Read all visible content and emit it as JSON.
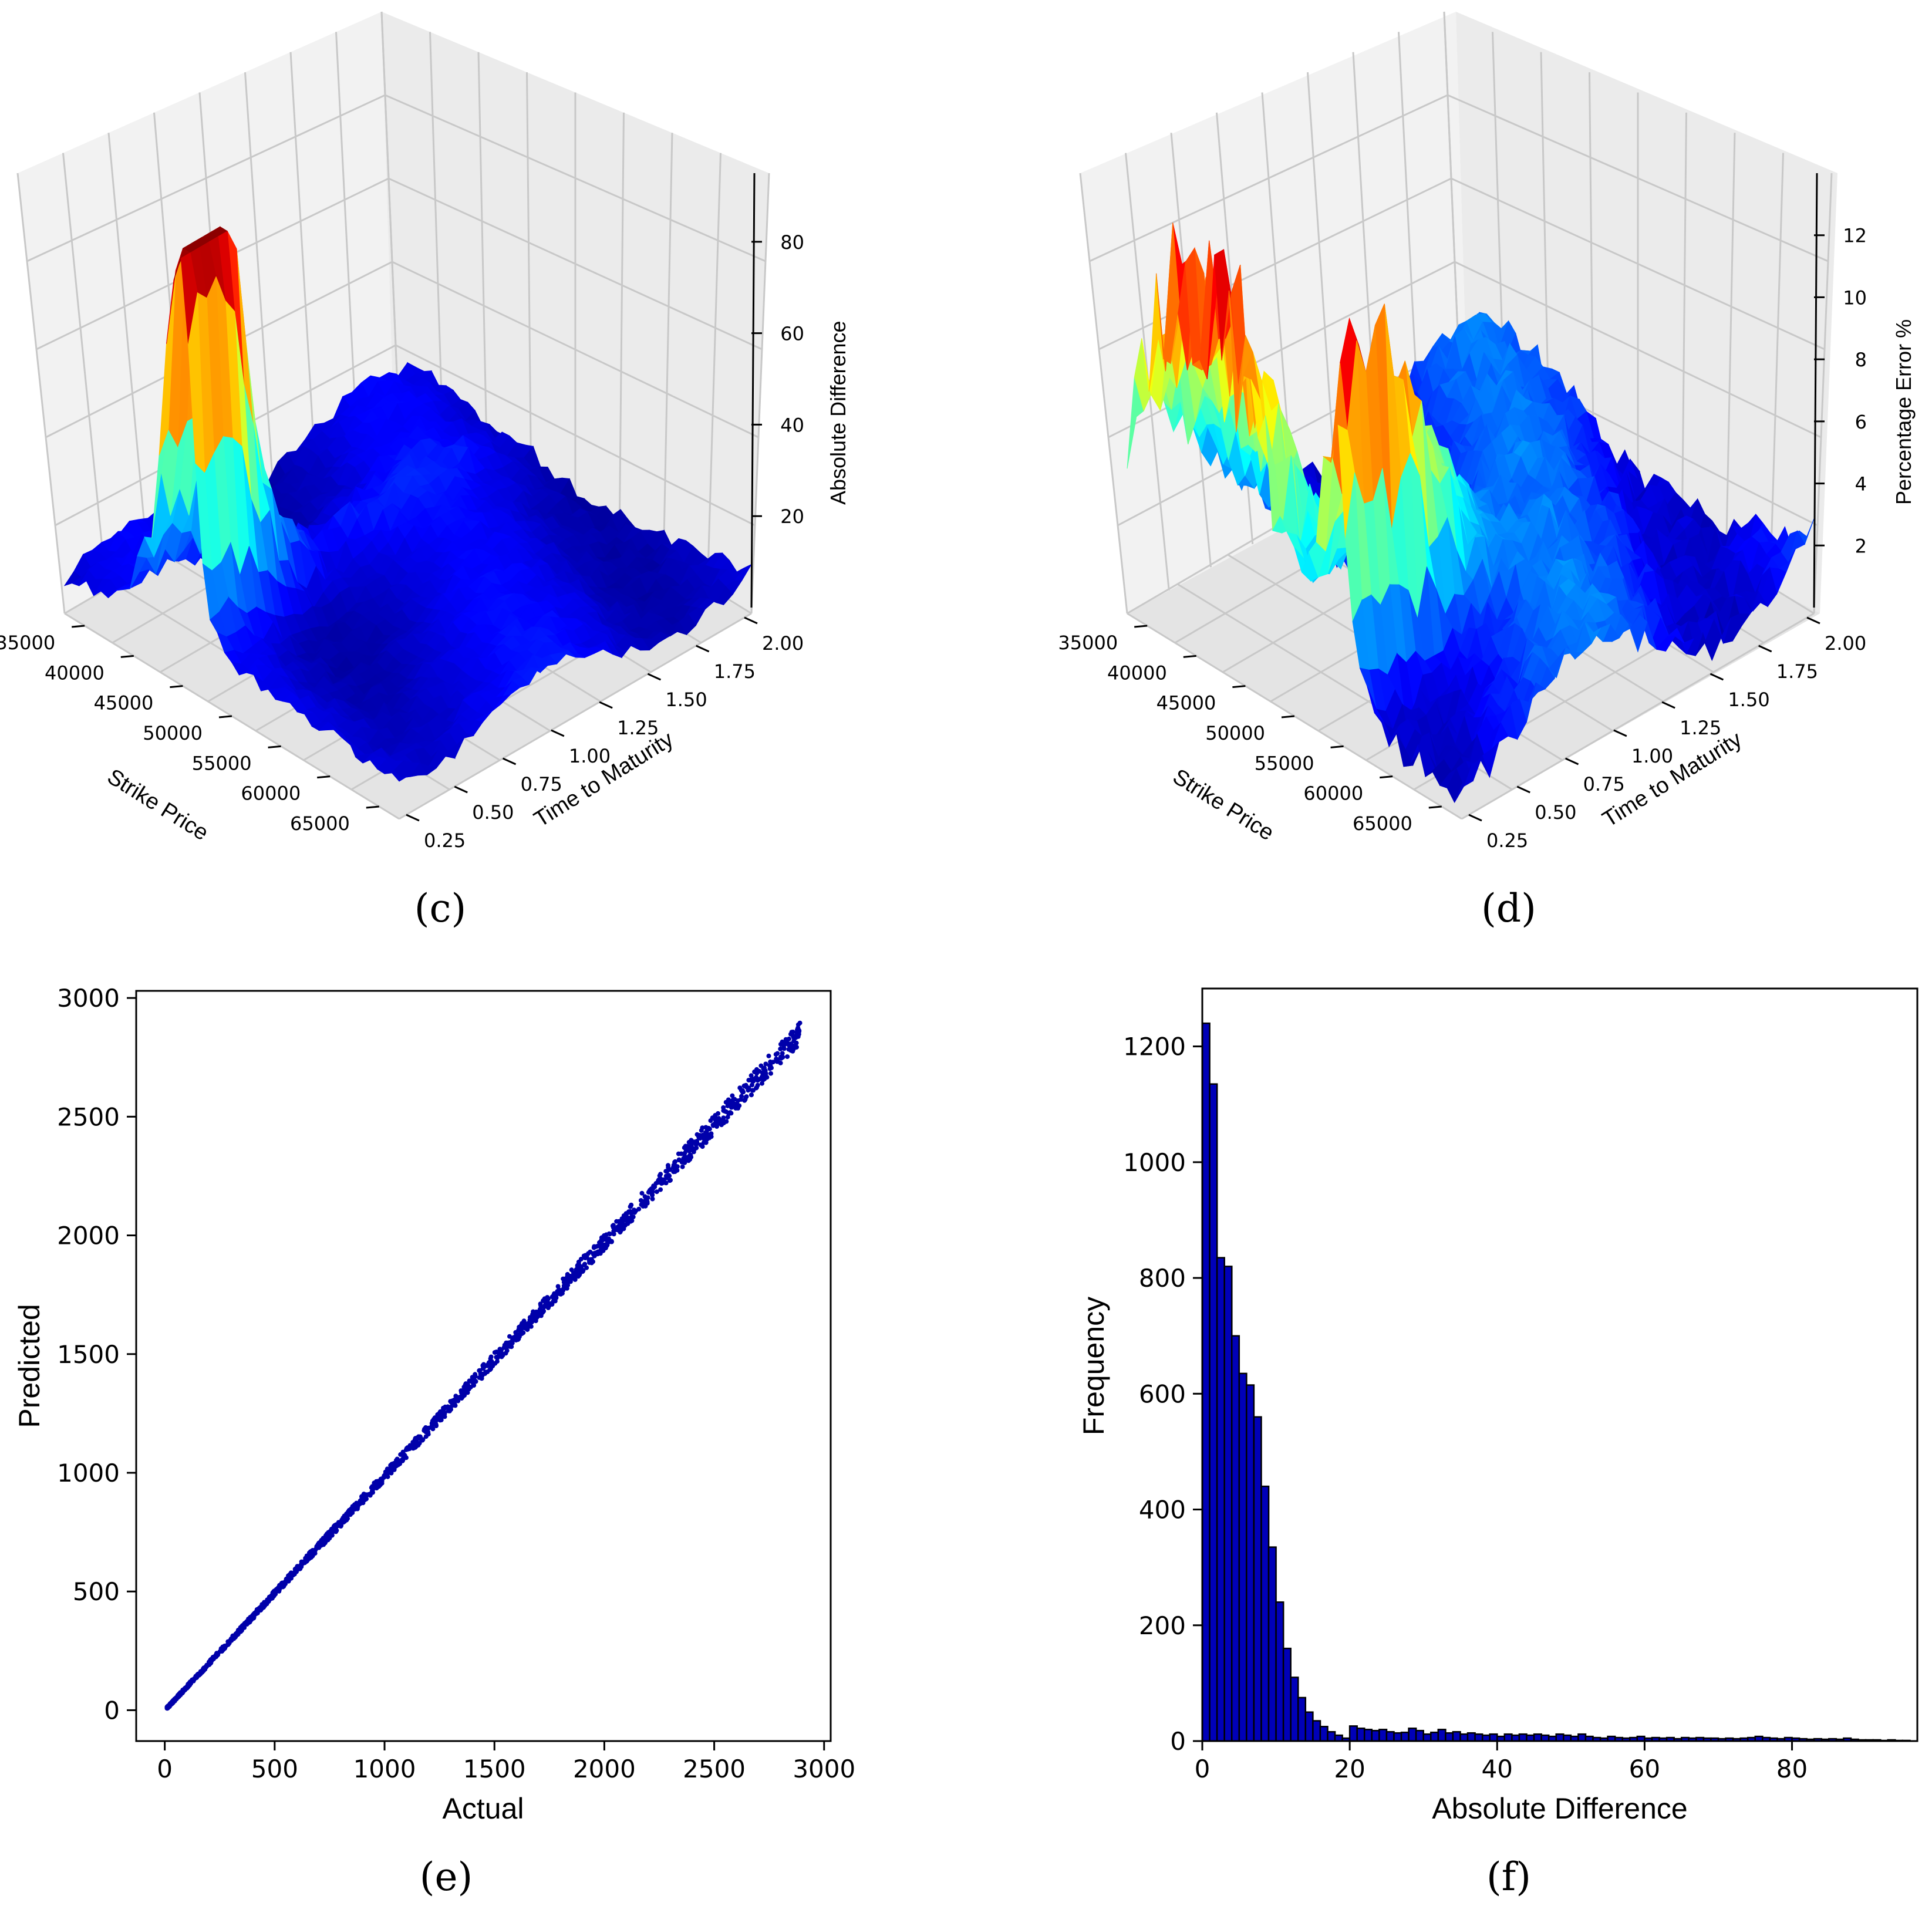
{
  "figure": {
    "panel_c_caption": "(c)",
    "panel_d_caption": "(d)",
    "panel_e_caption": "(e)",
    "panel_f_caption": "(f)"
  },
  "colors": {
    "series": "#0000aa",
    "hist_fill": "#0000b8",
    "edge": "#000000"
  },
  "chart_data": [
    {
      "id": "c",
      "type": "surface3d",
      "title": "",
      "xlabel": "Strike Price",
      "ylabel": "Time to Maturity",
      "zlabel": "Absolute Difference",
      "x_ticks": [
        "35000",
        "40000",
        "45000",
        "50000",
        "55000",
        "60000",
        "65000"
      ],
      "y_ticks": [
        "0.25",
        "0.50",
        "0.75",
        "1.00",
        "1.25",
        "1.50",
        "1.75",
        "2.00"
      ],
      "z_ticks": [
        "20",
        "40",
        "60",
        "80"
      ],
      "zlim": [
        0,
        95
      ],
      "colormap": "jet",
      "notes": "Peak about 90 near strike 45000-50000 at short maturity"
    },
    {
      "id": "d",
      "type": "surface3d",
      "title": "",
      "xlabel": "Strike Price",
      "ylabel": "Time to Maturity",
      "zlabel": "Percentage Error %",
      "x_ticks": [
        "35000",
        "40000",
        "45000",
        "50000",
        "55000",
        "60000",
        "65000"
      ],
      "y_ticks": [
        "0.25",
        "0.50",
        "0.75",
        "1.00",
        "1.25",
        "1.50",
        "1.75",
        "2.00"
      ],
      "z_ticks": [
        "2",
        "4",
        "6",
        "8",
        "10",
        "12"
      ],
      "zlim": [
        0,
        14
      ],
      "colormap": "jet",
      "notes": "Peaks about 13 near low strikes and around 60000"
    },
    {
      "id": "e",
      "type": "scatter",
      "title": "",
      "xlabel": "Actual",
      "ylabel": "Predicted",
      "xlim": [
        -130,
        3030
      ],
      "ylim": [
        -130,
        3030
      ],
      "x_ticks": [
        "0",
        "500",
        "1000",
        "1500",
        "2000",
        "2500",
        "3000"
      ],
      "y_ticks": [
        "0",
        "500",
        "1000",
        "1500",
        "2000",
        "2500",
        "3000"
      ],
      "x_range": [
        10,
        2890
      ],
      "trend": "predicted approximately equal to actual (slope ~0.99)"
    },
    {
      "id": "f",
      "type": "bar",
      "title": "",
      "xlabel": "Absolute Difference",
      "ylabel": "Frequency",
      "xlim": [
        0,
        97
      ],
      "ylim": [
        0,
        1300
      ],
      "x_ticks": [
        "0",
        "20",
        "40",
        "60",
        "80"
      ],
      "y_ticks": [
        "0",
        "200",
        "400",
        "600",
        "800",
        "1000",
        "1200"
      ],
      "bin_width": 1,
      "values": [
        1240,
        1135,
        835,
        820,
        700,
        635,
        615,
        560,
        440,
        335,
        240,
        160,
        110,
        75,
        50,
        35,
        25,
        16,
        10,
        5,
        26,
        22,
        20,
        18,
        20,
        16,
        14,
        15,
        22,
        18,
        12,
        15,
        20,
        14,
        16,
        12,
        14,
        12,
        10,
        12,
        8,
        12,
        10,
        12,
        10,
        12,
        10,
        8,
        12,
        10,
        8,
        12,
        8,
        6,
        5,
        8,
        6,
        5,
        6,
        8,
        5,
        6,
        5,
        6,
        4,
        6,
        5,
        6,
        5,
        5,
        4,
        5,
        4,
        5,
        6,
        8,
        6,
        5,
        4,
        6,
        5,
        4,
        3,
        4,
        3,
        4,
        3,
        5,
        3,
        2,
        2,
        2,
        1,
        2,
        1,
        1
      ]
    }
  ]
}
